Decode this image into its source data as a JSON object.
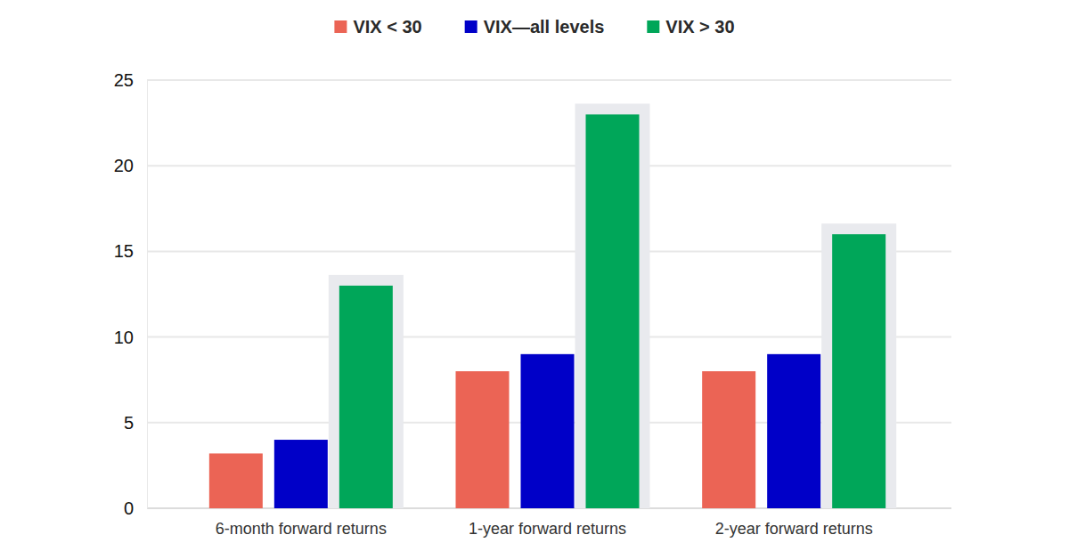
{
  "chart_data": {
    "type": "bar",
    "categories": [
      "6-month forward returns",
      "1-year forward returns",
      "2-year forward returns"
    ],
    "series": [
      {
        "name": "VIX < 30",
        "color": "#eb6455",
        "values": [
          3.2,
          8,
          8
        ]
      },
      {
        "name": "VIX—all levels",
        "color": "#0000c8",
        "values": [
          4,
          9,
          9
        ]
      },
      {
        "name": "VIX > 30",
        "color": "#00a659",
        "values": [
          13,
          23,
          16
        ]
      }
    ],
    "ylim": [
      0,
      25
    ],
    "yticks": [
      0,
      5,
      10,
      15,
      20,
      25
    ],
    "grid": true,
    "legend": "top"
  }
}
